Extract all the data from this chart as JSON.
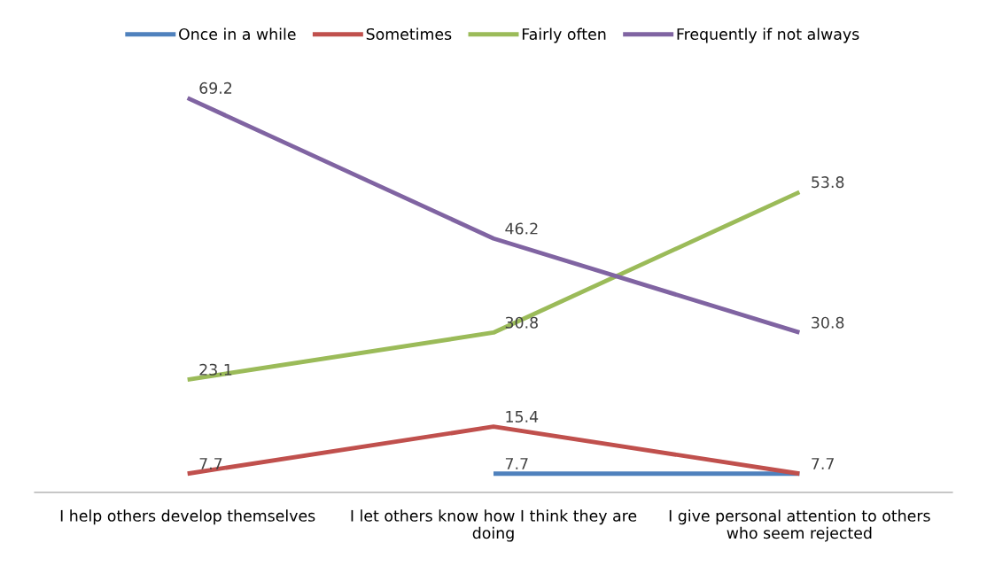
{
  "chart_data": {
    "type": "line",
    "categories": [
      "I help others develop themselves",
      "I let others know how I think they are doing",
      "I give personal attention to others who seem rejected"
    ],
    "series": [
      {
        "name": "Once in a while",
        "color": "#4f81bd",
        "values": [
          null,
          7.7,
          7.7
        ],
        "value_labels": [
          null,
          "7.7",
          "7.7"
        ]
      },
      {
        "name": "Sometimes",
        "color": "#c0504d",
        "values": [
          7.7,
          15.4,
          7.7
        ],
        "value_labels": [
          "7.7",
          "15.4",
          null
        ]
      },
      {
        "name": "Fairly often",
        "color": "#9bbb59",
        "values": [
          23.1,
          30.8,
          53.8
        ],
        "value_labels": [
          "23.1",
          "30.8",
          "53.8"
        ]
      },
      {
        "name": "Frequently if not always",
        "color": "#8064a2",
        "values": [
          69.2,
          46.2,
          30.8
        ],
        "value_labels": [
          "69.2",
          "46.2",
          "30.8"
        ]
      }
    ],
    "tick_labels": "x",
    "legend": "top",
    "grid": false,
    "marker": "none",
    "line_style": "solid"
  }
}
